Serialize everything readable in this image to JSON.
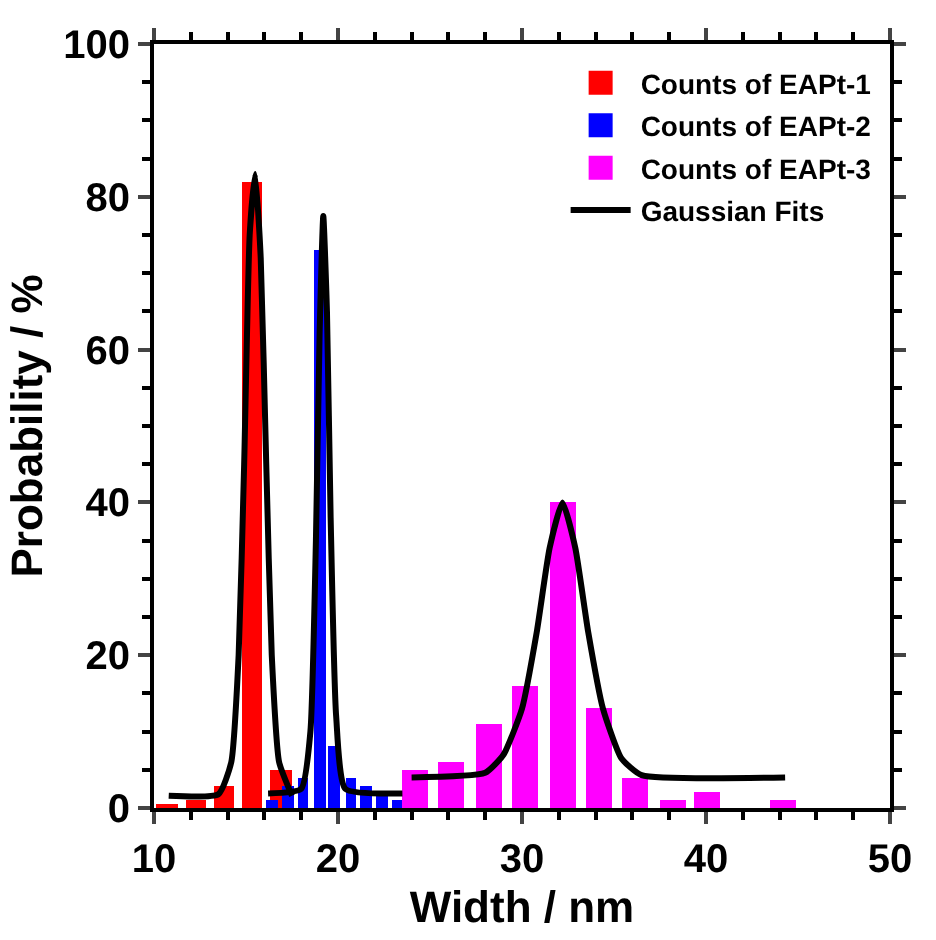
{
  "chart_data": {
    "type": "bar",
    "xlabel": "Width / nm",
    "ylabel": "Probability / %",
    "xlim": [
      10,
      50
    ],
    "xticks": [
      10,
      20,
      30,
      40,
      50
    ],
    "ylim": [
      0,
      100
    ],
    "yticks": [
      0,
      20,
      40,
      60,
      80,
      100
    ],
    "legend": "top right",
    "series": [
      {
        "name": "Counts of EAPt-1",
        "color": "#ff0000",
        "x": [
          10.7,
          12.3,
          13.8,
          15.3,
          16.9
        ],
        "values": [
          0.6,
          1,
          3,
          82,
          5
        ]
      },
      {
        "name": "Counts of EAPt-2",
        "color": "#0000ff",
        "x": [
          16.4,
          17.3,
          18.1,
          19.0,
          19.8,
          20.7,
          21.5,
          22.4,
          23.2
        ],
        "values": [
          1,
          3,
          4,
          73,
          8,
          4,
          3,
          1.5,
          1
        ]
      },
      {
        "name": "Counts of EAPt-3",
        "color": "#ff00ff",
        "x": [
          24.2,
          26.1,
          28.2,
          30.2,
          32.2,
          34.2,
          36.1,
          38.2,
          40.1,
          44.2
        ],
        "values": [
          5,
          6,
          11,
          16,
          40,
          13,
          4,
          1,
          2,
          1
        ]
      },
      {
        "name": "Gaussian Fits",
        "type": "line",
        "color": "#000000",
        "x": [
          10.8,
          13.5,
          14.2,
          14.6,
          14.9,
          15.2,
          15.5,
          15.8,
          16.1,
          16.4,
          16.8,
          17.5
        ],
        "values": [
          1.6,
          1.8,
          6,
          20,
          45,
          75,
          83,
          72,
          45,
          20,
          6,
          1.6
        ]
      },
      {
        "type": "line",
        "color": "#000000",
        "x": [
          16.2,
          18.0,
          18.5,
          18.8,
          19.0,
          19.2,
          19.4,
          19.6,
          19.9,
          20.4,
          23.5
        ],
        "values": [
          1.9,
          2.5,
          10,
          35,
          62,
          77.5,
          65,
          38,
          12,
          2.5,
          1.9
        ]
      },
      {
        "type": "line",
        "color": "#000000",
        "x": [
          24,
          28,
          29,
          30,
          30.8,
          31.5,
          32.2,
          32.9,
          33.6,
          34.4,
          35.4,
          36.5,
          44.3
        ],
        "values": [
          4,
          4.6,
          7,
          13,
          23,
          34,
          40,
          34,
          23,
          13,
          6.5,
          4.3,
          4
        ]
      }
    ]
  }
}
